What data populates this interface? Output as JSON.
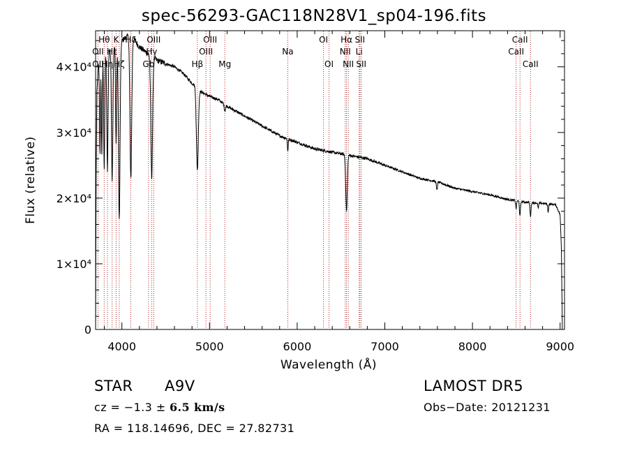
{
  "title": "spec-56293-GAC118N28V1_sp04-196.fits",
  "xlabel": "Wavelength (Å)",
  "ylabel": "Flux (relative)",
  "info": {
    "object_class": "STAR",
    "subclass": "A9V",
    "survey": "LAMOST DR5",
    "cz_prefix": "cz = −1.3 ± ",
    "cz_value": "6.5 km/s",
    "obs_date": "Obs−Date: 20121231",
    "radec": "RA = 118.14696, DEC =  27.82731"
  },
  "colors": {
    "spectrum": "#000000",
    "line_marker": "#b22222"
  },
  "chart_data": {
    "type": "line",
    "xlim": [
      3700,
      9050
    ],
    "ylim": [
      0,
      45500
    ],
    "grid": false,
    "x_ticks": [
      4000,
      5000,
      6000,
      7000,
      8000,
      9000
    ],
    "x_tick_labels": [
      "4000",
      "5000",
      "6000",
      "7000",
      "8000",
      "9000"
    ],
    "y_ticks": [
      0,
      10000,
      20000,
      30000,
      40000
    ],
    "y_tick_labels": [
      "0",
      "1×10⁴",
      "2×10⁴",
      "3×10⁴",
      "4×10⁴"
    ],
    "continuum": [
      [
        3700,
        0
      ],
      [
        3705,
        22000
      ],
      [
        3715,
        36000
      ],
      [
        3730,
        40000
      ],
      [
        3760,
        41000
      ],
      [
        3800,
        41500
      ],
      [
        3850,
        42500
      ],
      [
        3900,
        43000
      ],
      [
        3950,
        43500
      ],
      [
        4000,
        44000
      ],
      [
        4050,
        44500
      ],
      [
        4100,
        45000
      ],
      [
        4150,
        44000
      ],
      [
        4200,
        43000
      ],
      [
        4300,
        42000
      ],
      [
        4400,
        41000
      ],
      [
        4500,
        40500
      ],
      [
        4600,
        40000
      ],
      [
        4700,
        39000
      ],
      [
        4800,
        37500
      ],
      [
        4850,
        37000
      ],
      [
        4900,
        36200
      ],
      [
        5000,
        35500
      ],
      [
        5100,
        35000
      ],
      [
        5200,
        34000
      ],
      [
        5400,
        32500
      ],
      [
        5600,
        31000
      ],
      [
        5800,
        29500
      ],
      [
        6000,
        28500
      ],
      [
        6200,
        27500
      ],
      [
        6400,
        27000
      ],
      [
        6600,
        26500
      ],
      [
        6800,
        26000
      ],
      [
        7000,
        25000
      ],
      [
        7200,
        24000
      ],
      [
        7400,
        23000
      ],
      [
        7600,
        22500
      ],
      [
        7800,
        21500
      ],
      [
        8000,
        21000
      ],
      [
        8200,
        20500
      ],
      [
        8400,
        19800
      ],
      [
        8600,
        19400
      ],
      [
        8800,
        19200
      ],
      [
        8950,
        19000
      ],
      [
        9000,
        17500
      ],
      [
        9015,
        12000
      ],
      [
        9025,
        0
      ]
    ],
    "absorption_lines": [
      {
        "center": 3750,
        "depth": 14000,
        "width": 5
      },
      {
        "center": 3771,
        "depth": 15000,
        "width": 5
      },
      {
        "center": 3798,
        "depth": 17000,
        "width": 6
      },
      {
        "center": 3835,
        "depth": 18000,
        "width": 7
      },
      {
        "center": 3889,
        "depth": 20000,
        "width": 8
      },
      {
        "center": 3934,
        "depth": 15000,
        "width": 6
      },
      {
        "center": 3970,
        "depth": 27000,
        "width": 9
      },
      {
        "center": 4102,
        "depth": 22000,
        "width": 10
      },
      {
        "center": 4340,
        "depth": 18500,
        "width": 10
      },
      {
        "center": 4861,
        "depth": 12500,
        "width": 11
      },
      {
        "center": 5175,
        "depth": 900,
        "width": 8
      },
      {
        "center": 5893,
        "depth": 1800,
        "width": 5
      },
      {
        "center": 6563,
        "depth": 8500,
        "width": 9
      },
      {
        "center": 7594,
        "depth": 1300,
        "width": 6
      },
      {
        "center": 8498,
        "depth": 1200,
        "width": 5
      },
      {
        "center": 8542,
        "depth": 2200,
        "width": 6
      },
      {
        "center": 8662,
        "depth": 2100,
        "width": 6
      },
      {
        "center": 8750,
        "depth": 800,
        "width": 5
      },
      {
        "center": 8863,
        "depth": 1200,
        "width": 5
      }
    ],
    "line_markers": [
      {
        "label": "OII",
        "wavelength": 3727,
        "row": 1
      },
      {
        "label": "OII",
        "wavelength": 3727,
        "row": 2
      },
      {
        "label": "Hθ",
        "wavelength": 3798,
        "row": 0
      },
      {
        "label": "Hη",
        "wavelength": 3835,
        "row": 2
      },
      {
        "label": "Hε",
        "wavelength": 3889,
        "row": 1
      },
      {
        "label": "K",
        "wavelength": 3934,
        "row": 0
      },
      {
        "label": "Hζ",
        "wavelength": 3970,
        "row": 2
      },
      {
        "label": "Hδ",
        "wavelength": 4102,
        "row": 0
      },
      {
        "label": "Hγ",
        "wavelength": 4340,
        "row": 1
      },
      {
        "label": "OIII",
        "wavelength": 4363,
        "row": 0
      },
      {
        "label": "Gb",
        "wavelength": 4304,
        "row": 2
      },
      {
        "label": "Hβ",
        "wavelength": 4861,
        "row": 2
      },
      {
        "label": "OIII",
        "wavelength": 4959,
        "row": 1
      },
      {
        "label": "OIII",
        "wavelength": 5007,
        "row": 0
      },
      {
        "label": "Mg",
        "wavelength": 5175,
        "row": 2
      },
      {
        "label": "Na",
        "wavelength": 5893,
        "row": 1
      },
      {
        "label": "OI",
        "wavelength": 6300,
        "row": 0
      },
      {
        "label": "OI",
        "wavelength": 6363,
        "row": 2
      },
      {
        "label": "NII",
        "wavelength": 6548,
        "row": 1
      },
      {
        "label": "Hα",
        "wavelength": 6563,
        "row": 0
      },
      {
        "label": "NII",
        "wavelength": 6583,
        "row": 2
      },
      {
        "label": "Li",
        "wavelength": 6707,
        "row": 1
      },
      {
        "label": "SII",
        "wavelength": 6716,
        "row": 0
      },
      {
        "label": "SII",
        "wavelength": 6731,
        "row": 2
      },
      {
        "label": "CaII",
        "wavelength": 8498,
        "row": 1
      },
      {
        "label": "CaII",
        "wavelength": 8542,
        "row": 0
      },
      {
        "label": "CaII",
        "wavelength": 8662,
        "row": 2
      }
    ]
  }
}
